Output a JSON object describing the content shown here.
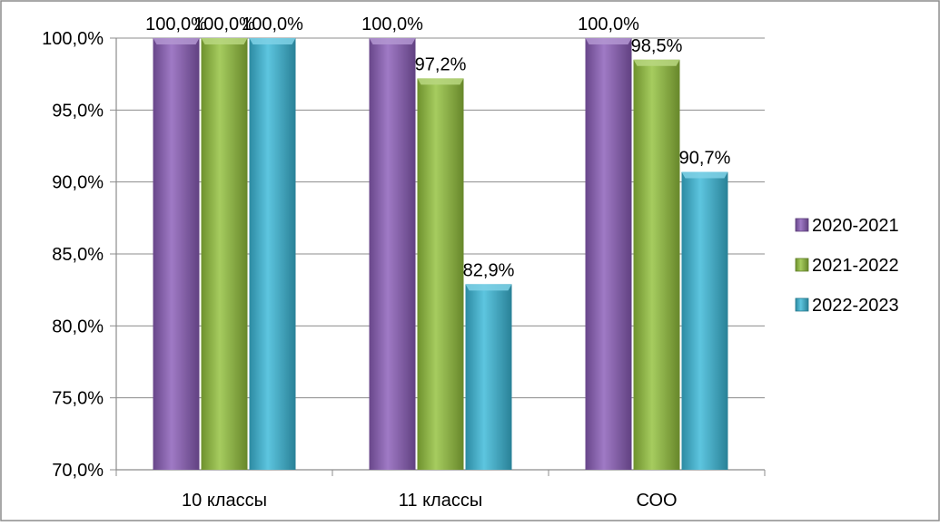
{
  "chart_data": {
    "type": "bar",
    "title": "",
    "xlabel": "",
    "ylabel": "",
    "ylim": [
      70,
      100
    ],
    "ytick_step": 5,
    "ytick_labels": [
      "70,0%",
      "75,0%",
      "80,0%",
      "85,0%",
      "90,0%",
      "95,0%",
      "100,0%"
    ],
    "grid": true,
    "legend_position": "right",
    "categories": [
      "10 классы",
      "11 классы",
      "СОО"
    ],
    "series": [
      {
        "name": "2020-2021",
        "color": "#8a5db8",
        "values": [
          100.0,
          100.0,
          100.0
        ],
        "labels": [
          "100,0%",
          "100,0%",
          "100,0%"
        ]
      },
      {
        "name": "2021-2022",
        "color": "#93c13c",
        "values": [
          100.0,
          97.2,
          98.5
        ],
        "labels": [
          "100,0%",
          "97,2%",
          "98,5%"
        ]
      },
      {
        "name": "2022-2023",
        "color": "#3ab8d8",
        "values": [
          100.0,
          82.9,
          90.7
        ],
        "labels": [
          "100,0%",
          "82,9%",
          "90,7%"
        ]
      }
    ]
  }
}
